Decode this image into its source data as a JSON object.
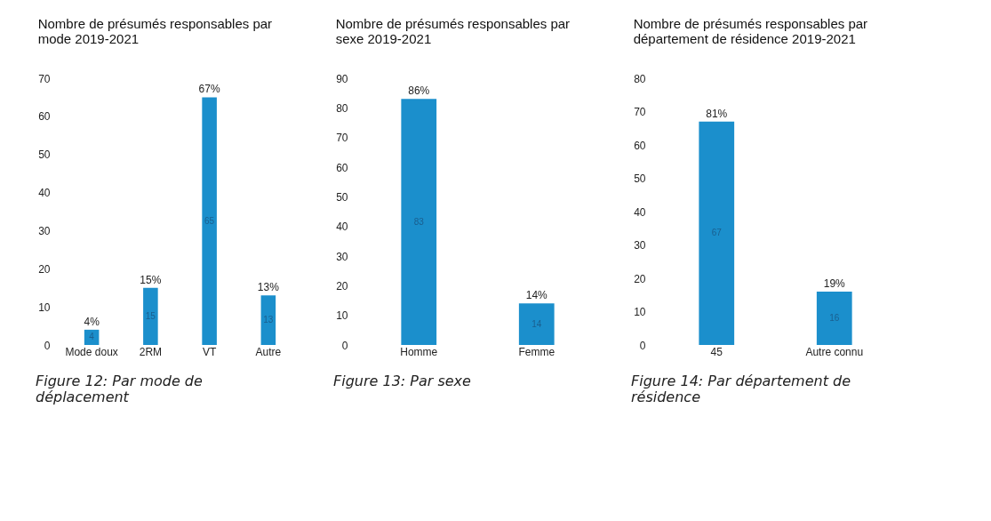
{
  "chart_data": [
    {
      "type": "bar",
      "title": "Nombre de présumés responsables par mode 2019-2021",
      "categories": [
        "Mode doux",
        "2RM",
        "VT",
        "Autre"
      ],
      "values": [
        4,
        15,
        65,
        13
      ],
      "color": "#1b8fcc",
      "ylim": [
        0,
        70
      ],
      "yticks": [
        0,
        10,
        20,
        30,
        40,
        50,
        60,
        70
      ],
      "grid": false,
      "data_labels": true,
      "annotations": [
        {
          "text": "4%",
          "x": "Mode doux",
          "y": 4
        },
        {
          "text": "15%",
          "x": "2RM",
          "y": 15
        },
        {
          "text": "67%",
          "x": "VT",
          "y": 65
        },
        {
          "text": "13%",
          "x": "Autre",
          "y": 13
        },
        "Figure 12: Par mode de déplacement"
      ]
    },
    {
      "type": "bar",
      "title": "Nombre de présumés responsables par sexe 2019-2021",
      "categories": [
        "Homme",
        "Femme"
      ],
      "values": [
        83,
        14
      ],
      "color": "#1b8fcc",
      "ylim": [
        0,
        90
      ],
      "yticks": [
        0,
        10,
        20,
        30,
        40,
        50,
        60,
        70,
        80,
        90
      ],
      "grid": false,
      "data_labels": true,
      "annotations": [
        {
          "text": "86%",
          "x": "Homme",
          "y": 83
        },
        {
          "text": "14%",
          "x": "Femme",
          "y": 14
        },
        "Figure 13: Par sexe"
      ]
    },
    {
      "type": "bar",
      "title": "Nombre de présumés responsables par département de résidence 2019-2021",
      "categories": [
        "45",
        "Autre connu"
      ],
      "values": [
        67,
        16
      ],
      "color": "#1b8fcc",
      "ylim": [
        0,
        80
      ],
      "yticks": [
        0,
        10,
        20,
        30,
        40,
        50,
        60,
        70,
        80
      ],
      "grid": false,
      "data_labels": true,
      "annotations": [
        {
          "text": "81%",
          "x": "45",
          "y": 67
        },
        {
          "text": "19%",
          "x": "Autre connu",
          "y": 16
        },
        "Figure 14: Par département de résidence"
      ]
    }
  ]
}
